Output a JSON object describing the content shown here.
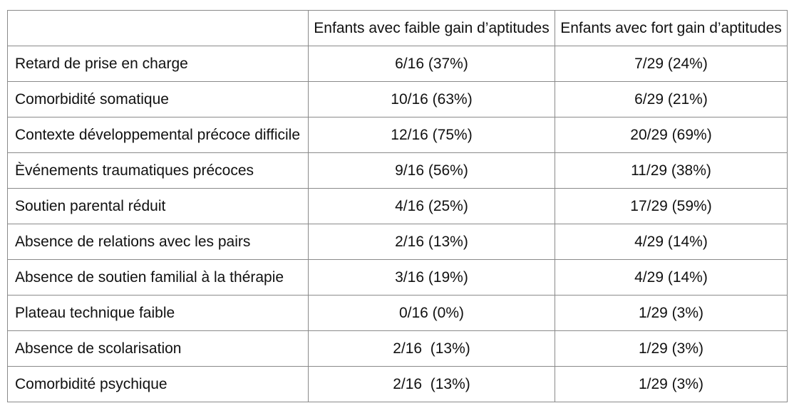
{
  "table": {
    "headers": [
      "",
      "Enfants avec faible gain d’aptitudes",
      "Enfants avec fort gain d’aptitudes"
    ],
    "rows": [
      {
        "label": "Retard de prise en charge",
        "low": "6/16 (37%)",
        "high": "7/29 (24%)"
      },
      {
        "label": "Comorbidité somatique",
        "low": "10/16 (63%)",
        "high": "6/29 (21%)"
      },
      {
        "label": "Contexte développemental précoce difficile",
        "low": "12/16 (75%)",
        "high": "20/29 (69%)"
      },
      {
        "label": "Èvénements traumatiques précoces",
        "low": "9/16 (56%)",
        "high": "11/29 (38%)"
      },
      {
        "label": "Soutien parental réduit",
        "low": "4/16 (25%)",
        "high": "17/29 (59%)"
      },
      {
        "label": "Absence de relations avec les pairs",
        "low": "2/16 (13%)",
        "high": "4/29 (14%)"
      },
      {
        "label": "Absence de soutien familial à la thérapie",
        "low": "3/16 (19%)",
        "high": "4/29 (14%)"
      },
      {
        "label": "Plateau technique faible",
        "low": "0/16 (0%)",
        "high": "1/29 (3%)"
      },
      {
        "label": "Absence de scolarisation",
        "low": "2/16  (13%)",
        "high": "1/29 (3%)"
      },
      {
        "label": "Comorbidité psychique",
        "low": "2/16  (13%)",
        "high": "1/29 (3%)"
      }
    ]
  }
}
